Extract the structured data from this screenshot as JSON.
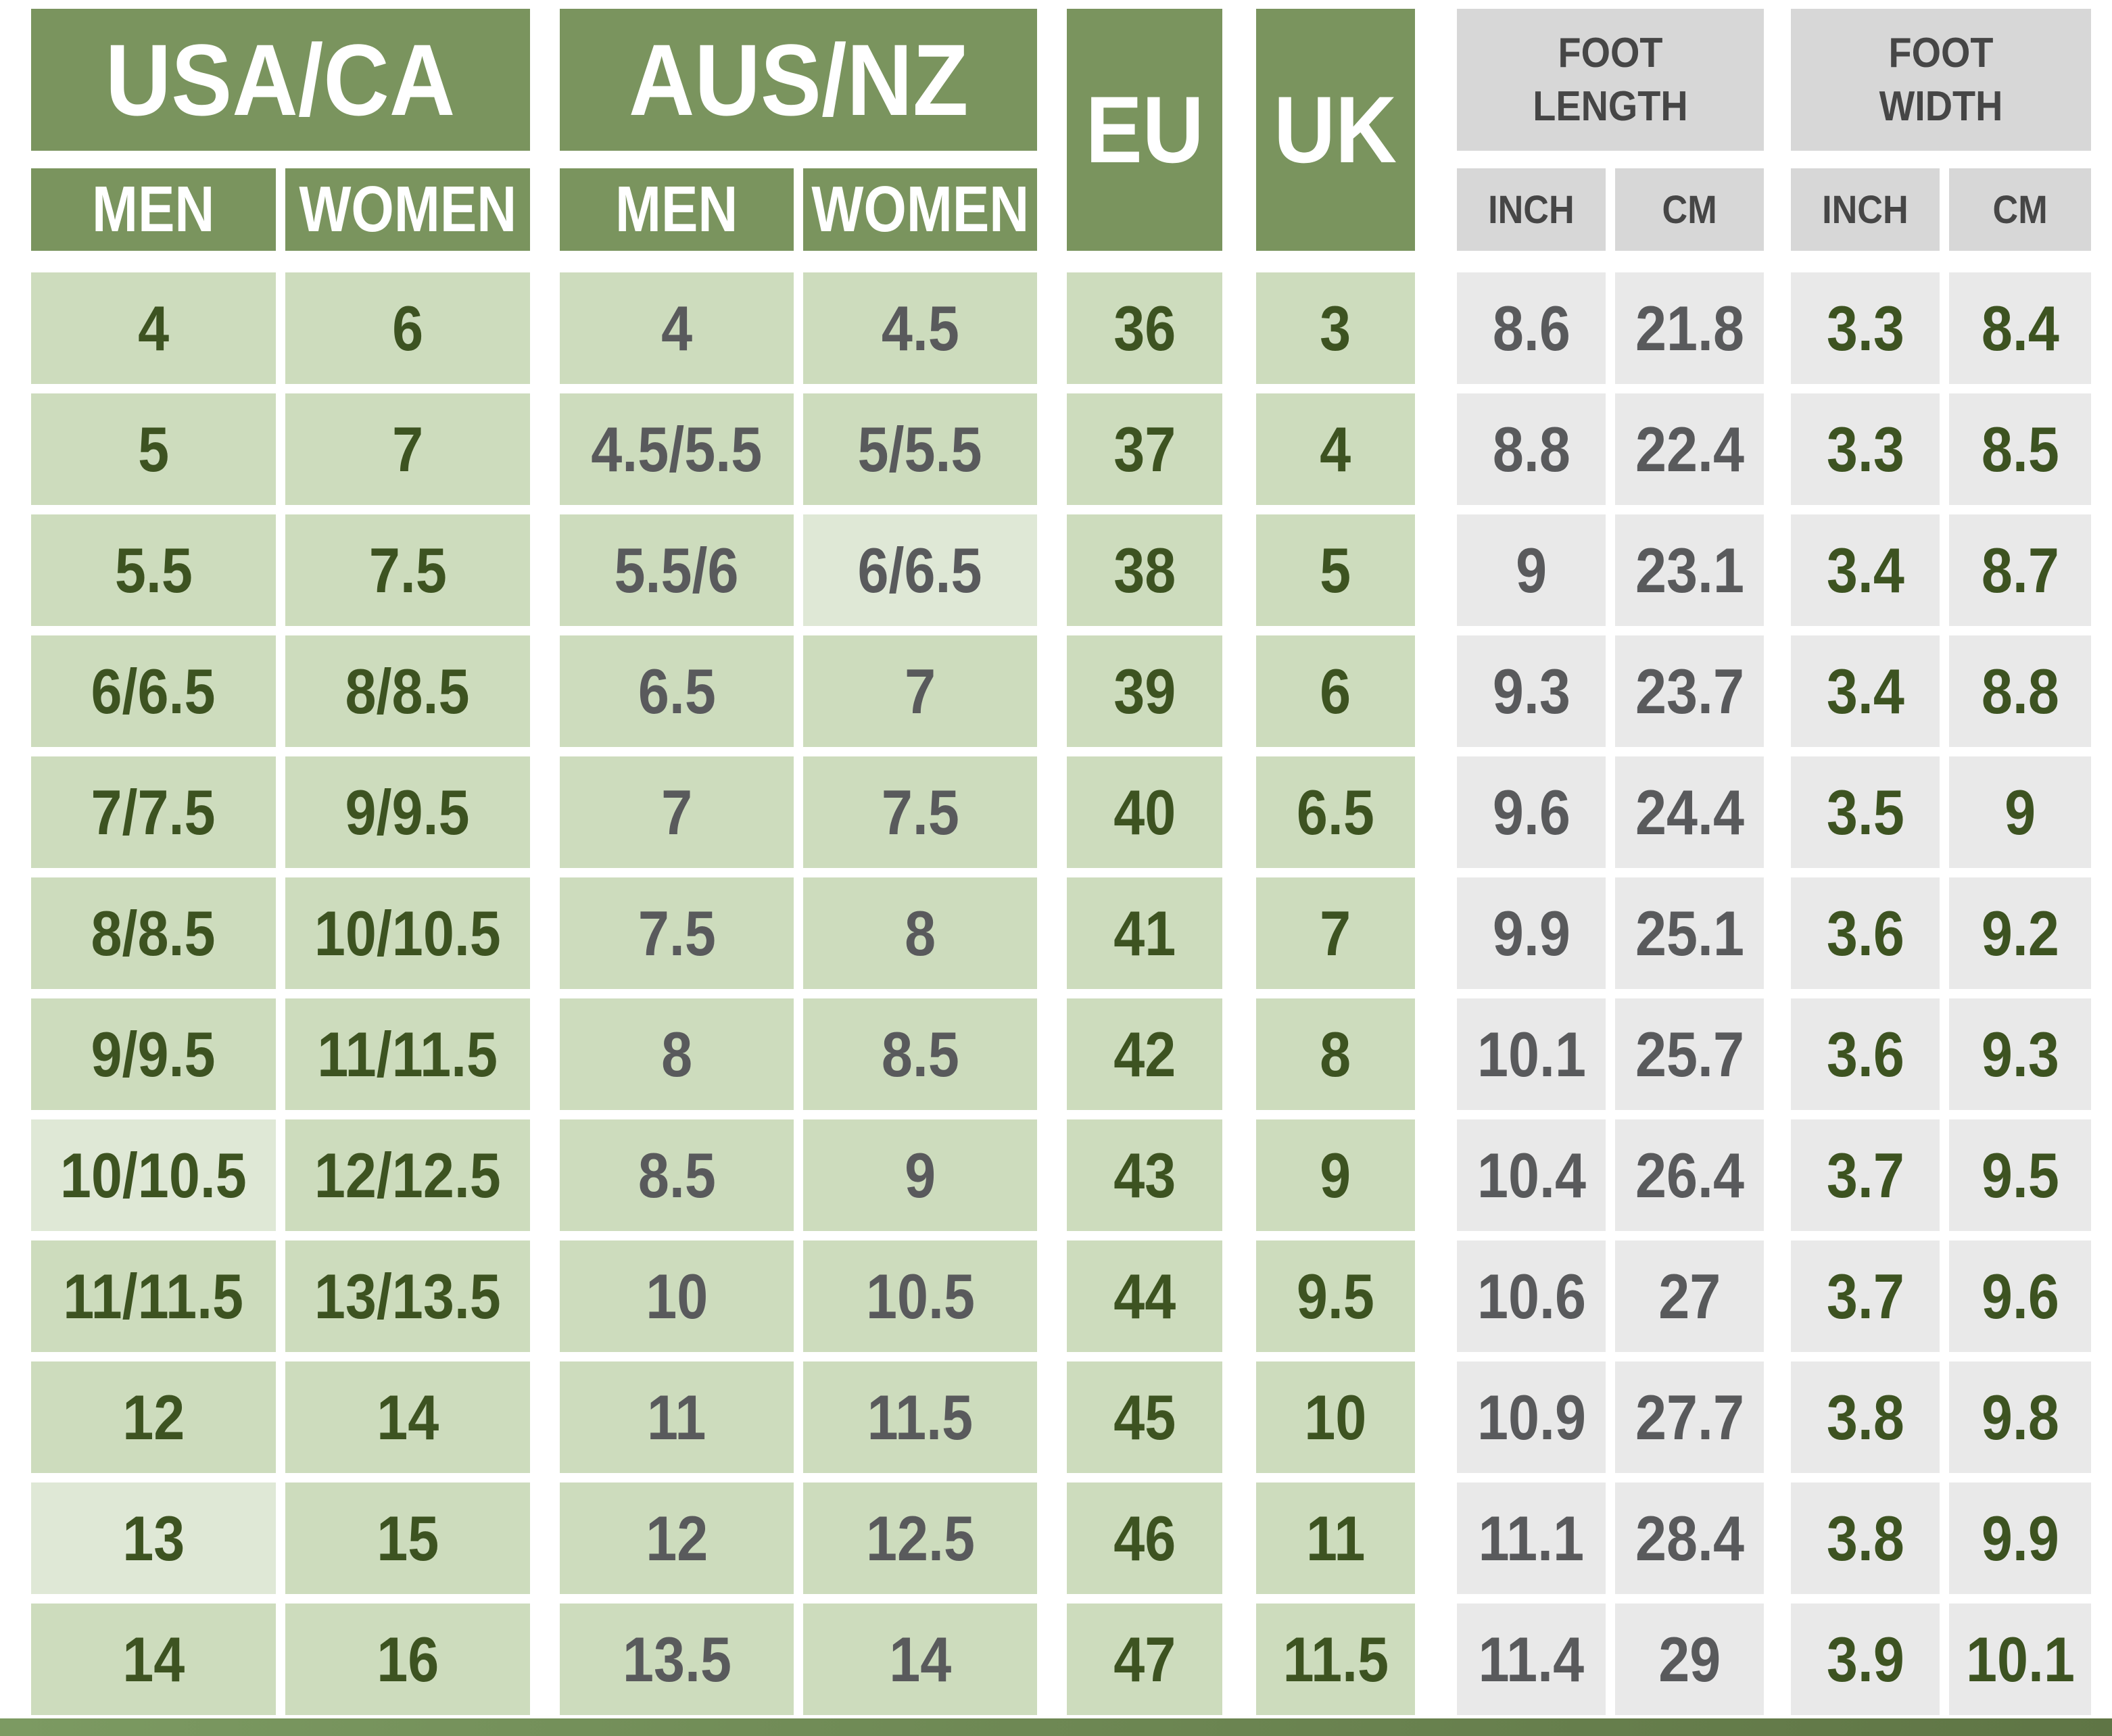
{
  "chart_data": {
    "type": "table",
    "columns": [
      "USA/CA MEN",
      "USA/CA WOMEN",
      "AUS/NZ MEN",
      "AUS/NZ WOMEN",
      "EU",
      "UK",
      "FOOT LENGTH (INCH)",
      "FOOT LENGTH (CM)",
      "FOOT WIDTH (INCH)",
      "FOOT WIDTH (CM)"
    ],
    "rows": [
      [
        "4",
        "6",
        "4",
        "4.5",
        "36",
        "3",
        "8.6",
        "21.8",
        "3.3",
        "8.4"
      ],
      [
        "5",
        "7",
        "4.5/5.5",
        "5/5.5",
        "37",
        "4",
        "8.8",
        "22.4",
        "3.3",
        "8.5"
      ],
      [
        "5.5",
        "7.5",
        "5.5/6",
        "6/6.5",
        "38",
        "5",
        "9",
        "23.1",
        "3.4",
        "8.7"
      ],
      [
        "6/6.5",
        "8/8.5",
        "6.5",
        "7",
        "39",
        "6",
        "9.3",
        "23.7",
        "3.4",
        "8.8"
      ],
      [
        "7/7.5",
        "9/9.5",
        "7",
        "7.5",
        "40",
        "6.5",
        "9.6",
        "24.4",
        "3.5",
        "9"
      ],
      [
        "8/8.5",
        "10/10.5",
        "7.5",
        "8",
        "41",
        "7",
        "9.9",
        "25.1",
        "3.6",
        "9.2"
      ],
      [
        "9/9.5",
        "11/11.5",
        "8",
        "8.5",
        "42",
        "8",
        "10.1",
        "25.7",
        "3.6",
        "9.3"
      ],
      [
        "10/10.5",
        "12/12.5",
        "8.5",
        "9",
        "43",
        "9",
        "10.4",
        "26.4",
        "3.7",
        "9.5"
      ],
      [
        "11/11.5",
        "13/13.5",
        "10",
        "10.5",
        "44",
        "9.5",
        "10.6",
        "27",
        "3.7",
        "9.6"
      ],
      [
        "12",
        "14",
        "11",
        "11.5",
        "45",
        "10",
        "10.9",
        "27.7",
        "3.8",
        "9.8"
      ],
      [
        "13",
        "15",
        "12",
        "12.5",
        "46",
        "11",
        "11.1",
        "28.4",
        "3.8",
        "9.9"
      ],
      [
        "14",
        "16",
        "13.5",
        "14",
        "47",
        "11.5",
        "11.4",
        "29",
        "3.9",
        "10.1"
      ]
    ]
  },
  "header": {
    "usa": {
      "label": "USA/CA",
      "men": "MEN",
      "women": "WOMEN"
    },
    "aus": {
      "label": "AUS/NZ",
      "men": "MEN",
      "women": "WOMEN"
    },
    "eu": "EU",
    "uk": "UK",
    "foot_length": {
      "label": "FOOT LENGTH",
      "inch": "INCH",
      "cm": "CM"
    },
    "foot_width": {
      "label": "FOOT WIDTH",
      "inch": "INCH",
      "cm": "CM"
    }
  },
  "columns_meta": [
    {
      "key": "usa-men",
      "bg": "green",
      "fg": "green"
    },
    {
      "key": "usa-women",
      "bg": "green",
      "fg": "green"
    },
    {
      "key": "aus-men",
      "bg": "green",
      "fg": "gray"
    },
    {
      "key": "aus-women",
      "bg": "green",
      "fg": "gray"
    },
    {
      "key": "eu",
      "bg": "green",
      "fg": "green"
    },
    {
      "key": "uk",
      "bg": "green",
      "fg": "green"
    },
    {
      "key": "length-inch",
      "bg": "gray",
      "fg": "gray"
    },
    {
      "key": "length-cm",
      "bg": "gray",
      "fg": "gray"
    },
    {
      "key": "width-inch",
      "bg": "gray",
      "fg": "green"
    },
    {
      "key": "width-cm",
      "bg": "gray",
      "fg": "green"
    }
  ],
  "light_cells": [
    {
      "row": 3,
      "col": 4
    },
    {
      "row": 8,
      "col": 1
    },
    {
      "row": 11,
      "col": 1
    }
  ],
  "colors": {
    "header_green": "#7a945e",
    "cell_green": "#cddcbd",
    "cell_green_light": "#dfe8d6",
    "cell_gray": "#e9e9e9",
    "subheader_gray": "#d7d7d7",
    "text_green": "#3d5321",
    "text_gray": "#595a5c",
    "subheader_text": "#464646",
    "bar_left": "#7c9a62",
    "bar_right": "#5f7545",
    "background": "#ffffff"
  }
}
